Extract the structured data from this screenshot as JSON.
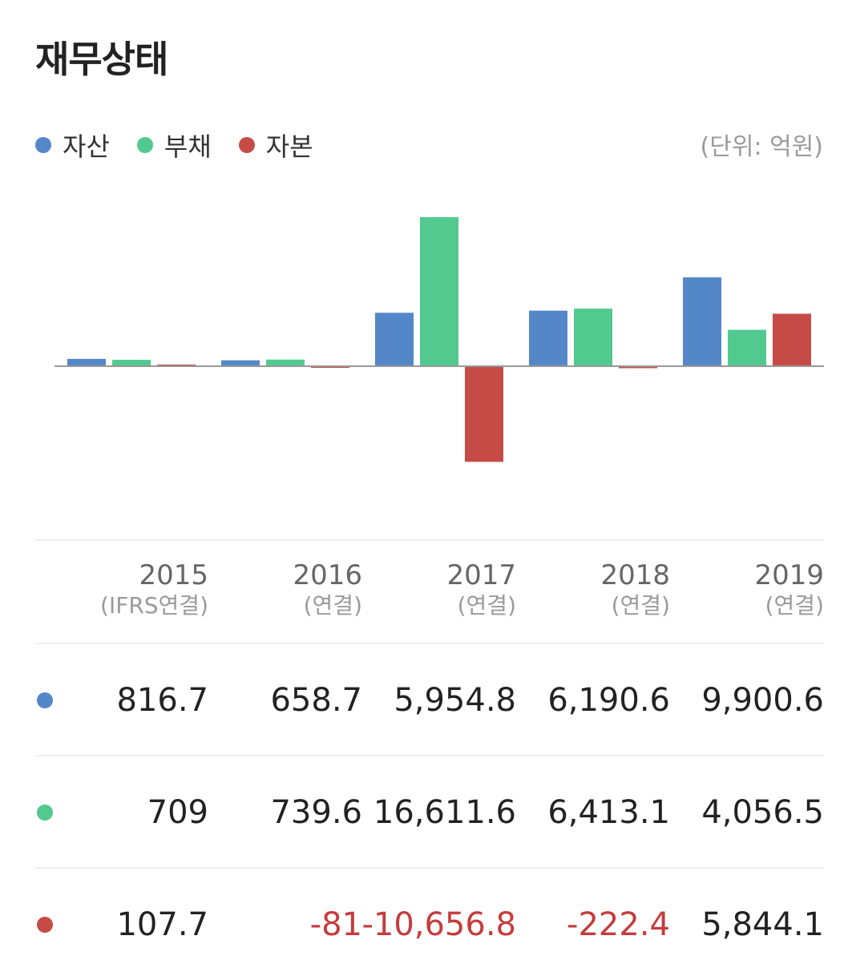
{
  "title": "재무상태",
  "unit_label": "(단위: 억원)",
  "legend": [
    {
      "label": "자산",
      "color": "#5487c8"
    },
    {
      "label": "부채",
      "color": "#52c98e"
    },
    {
      "label": "자본",
      "color": "#c64b46"
    }
  ],
  "columns": [
    {
      "year": "2015",
      "sub": "(IFRS연결)"
    },
    {
      "year": "2016",
      "sub": "(연결)"
    },
    {
      "year": "2017",
      "sub": "(연결)"
    },
    {
      "year": "2018",
      "sub": "(연결)"
    },
    {
      "year": "2019",
      "sub": "(연결)"
    }
  ],
  "table_rows": [
    {
      "series": "자산",
      "color": "#5487c8",
      "cells": [
        "816.7",
        "658.7",
        "5,954.8",
        "6,190.6",
        "9,900.6"
      ]
    },
    {
      "series": "부채",
      "color": "#52c98e",
      "cells": [
        "709",
        "739.6",
        "16,611.6",
        "6,413.1",
        "4,056.5"
      ]
    },
    {
      "series": "자본",
      "color": "#c64b46",
      "cells": [
        "107.7",
        "-81",
        "-10,656.8",
        "-222.4",
        "5,844.1"
      ]
    }
  ],
  "negative_color": "#c43c3c",
  "chart_data": {
    "type": "bar",
    "categories": [
      "2015",
      "2016",
      "2017",
      "2018",
      "2019"
    ],
    "series": [
      {
        "name": "자산",
        "color": "#5487c8",
        "values": [
          816.7,
          658.7,
          5954.8,
          6190.6,
          9900.6
        ]
      },
      {
        "name": "부채",
        "color": "#52c98e",
        "values": [
          709,
          739.6,
          16611.6,
          6413.1,
          4056.5
        ]
      },
      {
        "name": "자본",
        "color": "#c64b46",
        "values": [
          107.7,
          -81,
          -10656.8,
          -222.4,
          5844.1
        ]
      }
    ],
    "ylim": [
      -17500,
      17500
    ],
    "grid": false,
    "legend_position": "top-left"
  }
}
